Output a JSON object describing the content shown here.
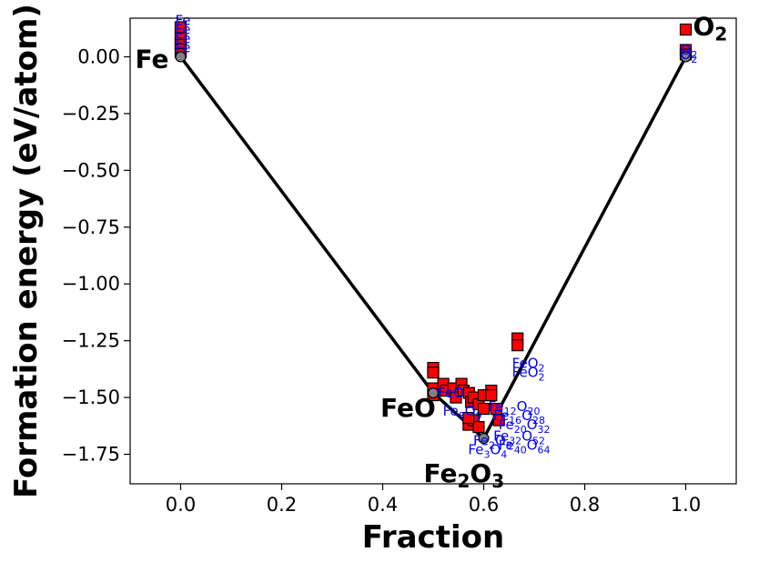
{
  "chart_data": {
    "type": "scatter",
    "title": "",
    "xlabel": "Fraction",
    "ylabel": "Formation energy (eV/atom)",
    "xlim": [
      -0.1,
      1.1
    ],
    "ylim": [
      -1.88,
      0.17
    ],
    "xticks": [
      0.0,
      0.2,
      0.4,
      0.6,
      0.8,
      1.0
    ],
    "xtick_labels": [
      "0.0",
      "0.2",
      "0.4",
      "0.6",
      "0.8",
      "1.0"
    ],
    "yticks": [
      0.0,
      -0.25,
      -0.5,
      -0.75,
      -1.0,
      -1.25,
      -1.5,
      -1.75
    ],
    "ytick_labels": [
      "0.00",
      "−0.25",
      "−0.50",
      "−0.75",
      "−1.00",
      "−1.25",
      "−1.50",
      "−1.75"
    ],
    "grid": false,
    "colors": {
      "hull": "#000000",
      "unstable_marker": "#ff0000",
      "stable_marker": "#808080",
      "unstable_label": "#0000ff"
    },
    "hull": {
      "x": [
        0.0,
        0.5,
        0.6,
        1.0
      ],
      "y": [
        0.0,
        -1.48,
        -1.68,
        0.0
      ]
    },
    "stable_points": [
      {
        "x": 0.0,
        "y": 0.0,
        "main": "Fe",
        "sub": ""
      },
      {
        "x": 0.5,
        "y": -1.48,
        "main": "FeO",
        "sub": ""
      },
      {
        "x": 0.6,
        "y": -1.68,
        "main": "Fe",
        "sub": "2",
        "main2": "O",
        "sub2": "3"
      },
      {
        "x": 1.0,
        "y": 0.0,
        "main": "O",
        "sub": "2"
      }
    ],
    "unstable_points": [
      {
        "x": 0.0,
        "y": 0.02
      },
      {
        "x": 0.0,
        "y": 0.04
      },
      {
        "x": 0.0,
        "y": 0.06
      },
      {
        "x": 0.0,
        "y": 0.08
      },
      {
        "x": 0.0,
        "y": 0.1
      },
      {
        "x": 0.0,
        "y": 0.13
      },
      {
        "x": 1.0,
        "y": 0.12
      },
      {
        "x": 1.0,
        "y": 0.03
      },
      {
        "x": 1.0,
        "y": 0.01
      },
      {
        "x": 0.667,
        "y": -1.24
      },
      {
        "x": 0.667,
        "y": -1.27
      },
      {
        "x": 0.5,
        "y": -1.37
      },
      {
        "x": 0.5,
        "y": -1.39
      },
      {
        "x": 0.5,
        "y": -1.46
      },
      {
        "x": 0.5,
        "y": -1.49
      },
      {
        "x": 0.52,
        "y": -1.44
      },
      {
        "x": 0.525,
        "y": -1.47
      },
      {
        "x": 0.54,
        "y": -1.46
      },
      {
        "x": 0.545,
        "y": -1.5
      },
      {
        "x": 0.556,
        "y": -1.44
      },
      {
        "x": 0.56,
        "y": -1.47
      },
      {
        "x": 0.571,
        "y": -1.48
      },
      {
        "x": 0.575,
        "y": -1.52
      },
      {
        "x": 0.58,
        "y": -1.5
      },
      {
        "x": 0.59,
        "y": -1.53
      },
      {
        "x": 0.6,
        "y": -1.49
      },
      {
        "x": 0.6,
        "y": -1.55
      },
      {
        "x": 0.615,
        "y": -1.47
      },
      {
        "x": 0.615,
        "y": -1.49
      },
      {
        "x": 0.625,
        "y": -1.55
      },
      {
        "x": 0.63,
        "y": -1.6
      },
      {
        "x": 0.57,
        "y": -1.62
      },
      {
        "x": 0.58,
        "y": -1.6
      },
      {
        "x": 0.59,
        "y": -1.63
      },
      {
        "x": 0.57,
        "y": -1.59
      }
    ],
    "point_labels": [
      {
        "x": 0.0,
        "y": 0.16,
        "text": "Fe"
      },
      {
        "x": 0.0,
        "y": 0.12,
        "text": "Fe"
      },
      {
        "x": 0.0,
        "y": 0.08,
        "text": "Fe"
      },
      {
        "x": 0.0,
        "y": 0.04,
        "text": "Fe"
      },
      {
        "x": 1.0,
        "y": 0.01,
        "text": "O",
        "sub": "2"
      },
      {
        "x": 1.0,
        "y": 0.03,
        "text": "O",
        "sub": "2"
      },
      {
        "x": 0.667,
        "y": -1.35,
        "text": "FeO",
        "sub": "2"
      },
      {
        "x": 0.667,
        "y": -1.39,
        "text": "FeO",
        "sub": "2"
      },
      {
        "x": 0.52,
        "y": -1.48,
        "text": "FeO"
      },
      {
        "x": 0.53,
        "y": -1.56,
        "text": "Fe",
        "sub": "8",
        "text2": "O",
        "sub2": "9"
      },
      {
        "x": 0.62,
        "y": -1.54,
        "text": "Fe",
        "sub": "12",
        "text2": "O",
        "sub2": "20"
      },
      {
        "x": 0.63,
        "y": -1.58,
        "text": "Fe",
        "sub": "16",
        "text2": "O",
        "sub2": "28"
      },
      {
        "x": 0.64,
        "y": -1.62,
        "text": "Fe",
        "sub": "20",
        "text2": "O",
        "sub2": "32"
      },
      {
        "x": 0.63,
        "y": -1.67,
        "text": "Fe",
        "sub": "32",
        "text2": "O",
        "sub2": "52"
      },
      {
        "x": 0.64,
        "y": -1.71,
        "text": "Fe",
        "sub": "40",
        "text2": "O",
        "sub2": "64"
      },
      {
        "x": 0.58,
        "y": -1.73,
        "text": "Fe",
        "sub": "3",
        "text2": "O",
        "sub2": "4"
      },
      {
        "x": 0.59,
        "y": -1.69,
        "text": "Fe",
        "sub": "2",
        "text2": "O",
        "sub2": "3"
      }
    ]
  }
}
